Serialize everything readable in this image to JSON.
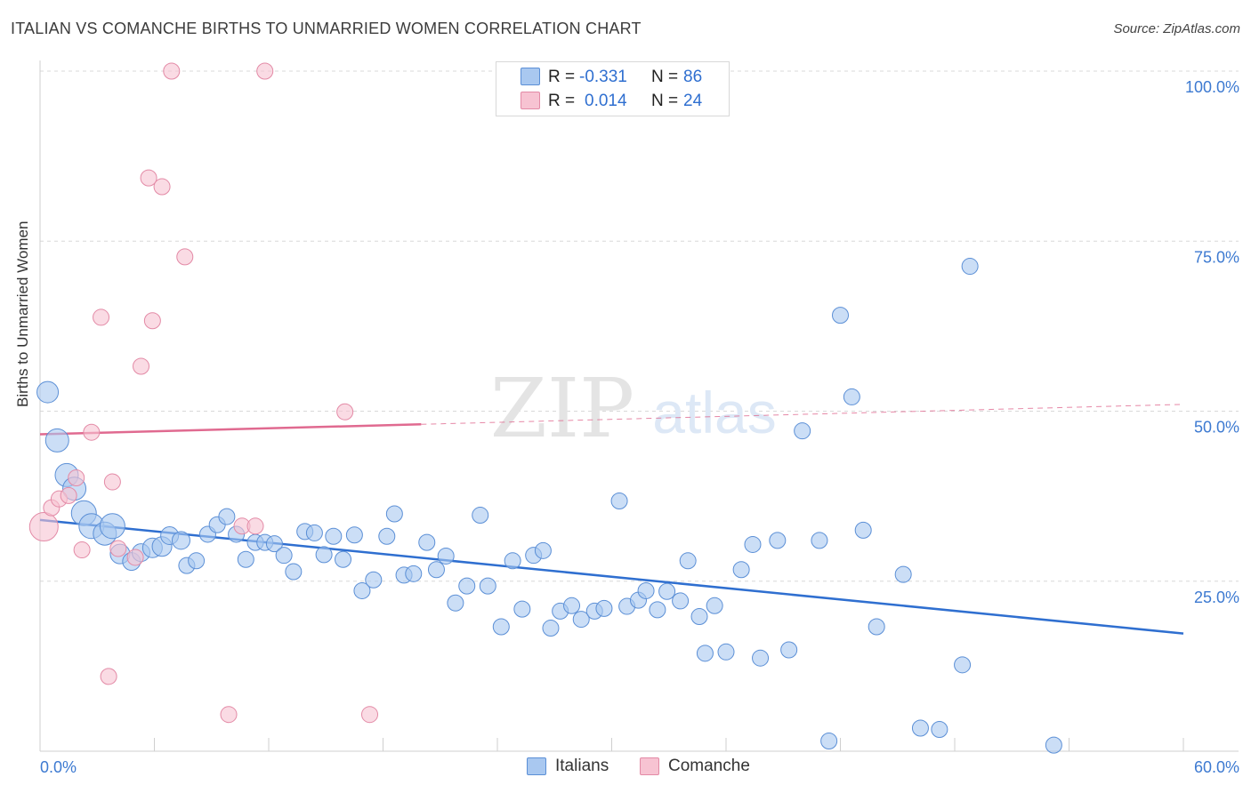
{
  "title": "ITALIAN VS COMANCHE BIRTHS TO UNMARRIED WOMEN CORRELATION CHART",
  "source": "Source: ZipAtlas.com",
  "watermark": {
    "zip": "ZIP",
    "atlas": "atlas"
  },
  "legend": {
    "rows": [
      {
        "r_label": "R =",
        "r_value": "-0.331",
        "n_label": "N =",
        "n_value": "86",
        "color": "#a9c8f0",
        "border": "#5b8fd6"
      },
      {
        "r_label": "R =",
        "r_value": "0.014",
        "n_label": "N =",
        "n_value": "24",
        "color": "#f7c3d2",
        "border": "#e38aa6"
      }
    ]
  },
  "bottom_legend": [
    {
      "label": "Italians",
      "color": "#a9c8f0",
      "border": "#5b8fd6"
    },
    {
      "label": "Comanche",
      "color": "#f7c3d2",
      "border": "#e38aa6"
    }
  ],
  "chart_data": {
    "type": "scatter",
    "title": "ITALIAN VS COMANCHE BIRTHS TO UNMARRIED WOMEN CORRELATION CHART",
    "xlabel": "",
    "ylabel": "Births to Unmarried Women",
    "xlim": [
      0,
      60
    ],
    "ylim": [
      0,
      100
    ],
    "x_tick_labels": [
      "0.0%",
      "60.0%"
    ],
    "y_tick_labels": [
      "100.0%",
      "75.0%",
      "50.0%",
      "25.0%"
    ],
    "y_ticks": [
      100,
      75,
      50,
      25
    ],
    "grid": true,
    "legend_position": "top-center",
    "series": [
      {
        "name": "Italians",
        "color": "#5b8fd6",
        "fill": "#a9c8f0",
        "trend": {
          "x0": 0,
          "y0": 34.0,
          "x1": 60,
          "y1": 17.3,
          "style": "solid",
          "color": "#2f6fd0"
        },
        "points": [
          [
            0.4,
            52.8,
            12
          ],
          [
            0.9,
            45.7,
            13
          ],
          [
            1.4,
            40.6,
            13
          ],
          [
            1.8,
            38.6,
            13
          ],
          [
            2.3,
            35.0,
            14
          ],
          [
            2.7,
            33.1,
            14
          ],
          [
            3.4,
            32.0,
            13
          ],
          [
            3.8,
            33.1,
            14
          ],
          [
            4.2,
            29.0,
            11
          ],
          [
            4.8,
            27.9,
            10
          ],
          [
            5.3,
            29.2,
            10
          ],
          [
            5.9,
            29.9,
            11
          ],
          [
            6.4,
            30.1,
            11
          ],
          [
            6.8,
            31.7,
            10
          ],
          [
            7.4,
            31.0,
            10
          ],
          [
            7.7,
            27.3,
            9
          ],
          [
            8.2,
            28.0,
            9
          ],
          [
            8.8,
            31.9,
            9
          ],
          [
            9.3,
            33.3,
            9
          ],
          [
            9.8,
            34.5,
            9
          ],
          [
            10.3,
            31.9,
            9
          ],
          [
            10.8,
            28.2,
            9
          ],
          [
            11.3,
            30.7,
            9
          ],
          [
            11.8,
            30.7,
            9
          ],
          [
            12.3,
            30.5,
            9
          ],
          [
            12.8,
            28.8,
            9
          ],
          [
            13.3,
            26.4,
            9
          ],
          [
            13.9,
            32.3,
            9
          ],
          [
            14.4,
            32.1,
            9
          ],
          [
            14.9,
            28.9,
            9
          ],
          [
            15.4,
            31.6,
            9
          ],
          [
            15.9,
            28.2,
            9
          ],
          [
            16.5,
            31.8,
            9
          ],
          [
            16.9,
            23.6,
            9
          ],
          [
            17.5,
            25.2,
            9
          ],
          [
            18.2,
            31.6,
            9
          ],
          [
            18.6,
            34.9,
            9
          ],
          [
            19.1,
            25.9,
            9
          ],
          [
            19.6,
            26.1,
            9
          ],
          [
            20.3,
            30.7,
            9
          ],
          [
            20.8,
            26.7,
            9
          ],
          [
            21.3,
            28.7,
            9
          ],
          [
            21.8,
            21.8,
            9
          ],
          [
            22.4,
            24.3,
            9
          ],
          [
            23.1,
            34.7,
            9
          ],
          [
            23.5,
            24.3,
            9
          ],
          [
            24.2,
            18.3,
            9
          ],
          [
            24.8,
            28.0,
            9
          ],
          [
            25.3,
            20.9,
            9
          ],
          [
            25.9,
            28.8,
            9
          ],
          [
            26.4,
            29.5,
            9
          ],
          [
            26.8,
            18.1,
            9
          ],
          [
            27.3,
            20.6,
            9
          ],
          [
            27.9,
            21.4,
            9
          ],
          [
            28.4,
            19.4,
            9
          ],
          [
            29.1,
            20.6,
            9
          ],
          [
            29.6,
            21.0,
            9
          ],
          [
            30.4,
            36.8,
            9
          ],
          [
            30.8,
            21.3,
            9
          ],
          [
            31.4,
            22.2,
            9
          ],
          [
            31.8,
            23.6,
            9
          ],
          [
            32.4,
            20.8,
            9
          ],
          [
            32.9,
            23.5,
            9
          ],
          [
            33.6,
            22.1,
            9
          ],
          [
            34.0,
            28.0,
            9
          ],
          [
            34.6,
            19.8,
            9
          ],
          [
            34.9,
            14.4,
            9
          ],
          [
            35.4,
            21.4,
            9
          ],
          [
            36.0,
            14.6,
            9
          ],
          [
            36.8,
            26.7,
            9
          ],
          [
            37.4,
            30.4,
            9
          ],
          [
            37.8,
            13.7,
            9
          ],
          [
            38.7,
            31.0,
            9
          ],
          [
            39.3,
            14.9,
            9
          ],
          [
            40.0,
            47.1,
            9
          ],
          [
            40.9,
            31.0,
            9
          ],
          [
            41.4,
            1.5,
            9
          ],
          [
            42.0,
            64.1,
            9
          ],
          [
            42.6,
            52.1,
            9
          ],
          [
            43.2,
            32.5,
            9
          ],
          [
            43.9,
            18.3,
            9
          ],
          [
            45.3,
            26.0,
            9
          ],
          [
            46.2,
            3.4,
            9
          ],
          [
            47.2,
            3.2,
            9
          ],
          [
            48.4,
            12.7,
            9
          ],
          [
            48.8,
            71.3,
            9
          ],
          [
            53.2,
            0.9,
            9
          ]
        ]
      },
      {
        "name": "Comanche",
        "color": "#e38aa6",
        "fill": "#f7c3d2",
        "trend": {
          "x0": 0,
          "y0": 46.6,
          "x1": 60,
          "y1": 51.0,
          "solid_until": 20,
          "style": "solid-then-dashed",
          "color": "#e06a90"
        },
        "points": [
          [
            0.2,
            33.0,
            16
          ],
          [
            0.6,
            35.8,
            9
          ],
          [
            1.0,
            37.1,
            9
          ],
          [
            1.5,
            37.6,
            9
          ],
          [
            1.9,
            40.2,
            9
          ],
          [
            2.2,
            29.6,
            9
          ],
          [
            2.7,
            46.9,
            9
          ],
          [
            3.2,
            63.8,
            9
          ],
          [
            3.6,
            11.0,
            9
          ],
          [
            3.8,
            39.6,
            9
          ],
          [
            4.1,
            29.8,
            9
          ],
          [
            5.0,
            28.5,
            9
          ],
          [
            5.3,
            56.6,
            9
          ],
          [
            5.7,
            84.3,
            9
          ],
          [
            5.9,
            63.3,
            9
          ],
          [
            6.4,
            83.0,
            9
          ],
          [
            6.9,
            100.0,
            9
          ],
          [
            7.6,
            72.7,
            9
          ],
          [
            9.9,
            5.4,
            9
          ],
          [
            10.6,
            33.1,
            9
          ],
          [
            11.3,
            33.1,
            9
          ],
          [
            11.8,
            100.0,
            9
          ],
          [
            16.0,
            49.9,
            9
          ],
          [
            17.3,
            5.4,
            9
          ]
        ]
      }
    ]
  }
}
